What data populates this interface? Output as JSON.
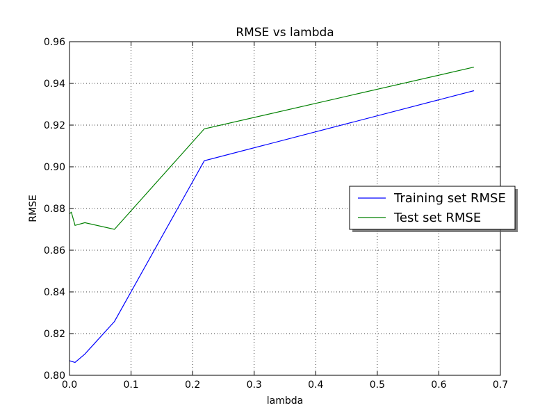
{
  "chart_data": {
    "type": "line",
    "title": "RMSE vs lambda",
    "xlabel": "lambda",
    "ylabel": "RMSE",
    "xlim": [
      0.0,
      0.7
    ],
    "ylim": [
      0.8,
      0.96
    ],
    "xticks": [
      0.0,
      0.1,
      0.2,
      0.3,
      0.4,
      0.5,
      0.6,
      0.7
    ],
    "xtick_labels": [
      "0.0",
      "0.1",
      "0.2",
      "0.3",
      "0.4",
      "0.5",
      "0.6",
      "0.7"
    ],
    "yticks": [
      0.8,
      0.82,
      0.84,
      0.86,
      0.88,
      0.9,
      0.92,
      0.94,
      0.96
    ],
    "ytick_labels": [
      "0.80",
      "0.82",
      "0.84",
      "0.86",
      "0.88",
      "0.90",
      "0.92",
      "0.94",
      "0.96"
    ],
    "grid": true,
    "legend_position": "center-right",
    "x": [
      0.0,
      0.003,
      0.009,
      0.025,
      0.073,
      0.219,
      0.657
    ],
    "series": [
      {
        "name": "Training set RMSE",
        "color": "#0000ff",
        "values": [
          0.807,
          0.8067,
          0.8062,
          0.8102,
          0.8258,
          0.9029,
          0.9365
        ]
      },
      {
        "name": "Test set RMSE",
        "color": "#008000",
        "values": [
          0.8775,
          0.8782,
          0.8719,
          0.8732,
          0.87,
          0.9182,
          0.9478
        ]
      }
    ]
  }
}
